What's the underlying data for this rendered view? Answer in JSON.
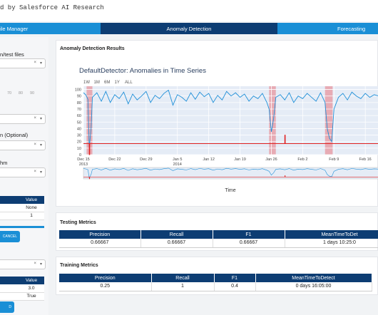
{
  "brand": {
    "text": "d by Salesforce AI Research"
  },
  "tabs": [
    {
      "label": "ile Manager"
    },
    {
      "label": "Anomaly Detection"
    },
    {
      "label": "Forecasting"
    }
  ],
  "sidebar": {
    "files_label": "n/test files",
    "slider_ticks": [
      "70",
      "80",
      "90"
    ],
    "optional_label": "n (Optional)",
    "algorithm_label": "hm",
    "param_table": {
      "header": "Value",
      "rows": [
        {
          "value": "None"
        },
        {
          "key": "",
          "value": "1"
        }
      ]
    },
    "cancel_label": "CANCEL",
    "second_table": {
      "header": "Value",
      "rows": [
        {
          "value": "3.0"
        },
        {
          "value": "True"
        }
      ]
    },
    "add_label": "D",
    "clear_icon": "x-icon",
    "dropdown_icon": "chevron-down-icon"
  },
  "results": {
    "title": "Anomaly Detection Results",
    "chart_title": "DefaultDetector: Anomalies in Time Series",
    "range_buttons": [
      "1W",
      "1M",
      "6M",
      "1Y",
      "ALL"
    ]
  },
  "testing": {
    "title": "Testing Metrics",
    "headers": [
      "Precision",
      "Recall",
      "F1",
      "MeanTimeToDet"
    ],
    "row": [
      "0.66667",
      "0.66667",
      "0.66667",
      "1 days 10:25:0"
    ]
  },
  "training": {
    "title": "Training Metrics",
    "headers": [
      "Precision",
      "Recall",
      "F1",
      "MeanTimeToDetect"
    ],
    "row": [
      "0.25",
      "1",
      "0.4",
      "0 days 16:05:00"
    ]
  },
  "chart_data": {
    "type": "line",
    "title": "DefaultDetector: Anomalies in Time Series",
    "xlabel": "Time",
    "ylabel": "",
    "x_tick_labels": [
      "Dec 15\n2013",
      "Dec 22",
      "Dec 29",
      "Jan 5\n2014",
      "Jan 12",
      "Jan 19",
      "Jan 26",
      "Feb 2",
      "Feb 9",
      "Feb 16"
    ],
    "y_ticks": [
      0,
      10,
      20,
      30,
      40,
      50,
      60,
      70,
      80,
      90,
      100
    ],
    "ylim": [
      0,
      105
    ],
    "x_range_days": [
      0,
      66
    ],
    "anomaly_regions_days": [
      [
        0.7,
        2.0
      ],
      [
        41.5,
        43.0
      ],
      [
        54.0,
        55.7
      ]
    ],
    "series": [
      {
        "name": "",
        "color": "#1f8fd8",
        "x_days": [
          0,
          0.5,
          1,
          1.3,
          1.7,
          2,
          3,
          4,
          5,
          6,
          7,
          8,
          9,
          10,
          11,
          12,
          13,
          14,
          15,
          16,
          17,
          18,
          19,
          20,
          21,
          22,
          23,
          24,
          25,
          26,
          27,
          28,
          29,
          30,
          31,
          32,
          33,
          34,
          35,
          36,
          37,
          38,
          39,
          40,
          41,
          41.5,
          42,
          42.5,
          43,
          44,
          45,
          46,
          47,
          48,
          49,
          50,
          51,
          52,
          53,
          54,
          54.5,
          55,
          55.5,
          56,
          57,
          58,
          59,
          60,
          61,
          62,
          63,
          64,
          65,
          66
        ],
        "y": [
          95,
          92,
          85,
          10,
          40,
          88,
          95,
          82,
          97,
          80,
          92,
          86,
          96,
          78,
          93,
          84,
          90,
          97,
          80,
          91,
          86,
          94,
          99,
          76,
          92,
          88,
          82,
          95,
          85,
          96,
          89,
          94,
          80,
          91,
          84,
          97,
          90,
          95,
          88,
          93,
          82,
          90,
          86,
          94,
          80,
          70,
          35,
          55,
          88,
          92,
          84,
          95,
          80,
          90,
          86,
          94,
          88,
          82,
          95,
          80,
          40,
          25,
          20,
          70,
          88,
          94,
          84,
          96,
          90,
          86,
          94,
          88,
          92,
          90
        ]
      },
      {
        "name": "",
        "color": "#e02020",
        "x_days": [
          0,
          1.3,
          1.31,
          1.4,
          1.41,
          45,
          45.01,
          45.1,
          45.11,
          66
        ],
        "y": [
          17,
          17,
          0,
          0,
          17,
          17,
          30,
          30,
          17,
          17
        ]
      }
    ]
  }
}
